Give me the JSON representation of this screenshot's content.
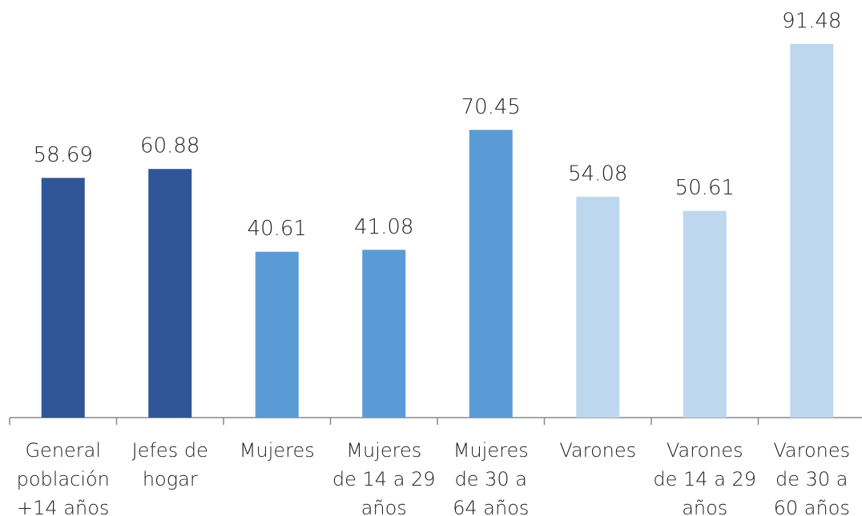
{
  "chart_data": {
    "type": "bar",
    "categories": [
      [
        "General",
        "población",
        "+14 años"
      ],
      [
        "Jefes de",
        "hogar"
      ],
      [
        "Mujeres"
      ],
      [
        "Mujeres",
        "de 14 a 29",
        "años"
      ],
      [
        "Mujeres",
        "de 30 a",
        "64 años"
      ],
      [
        "Varones"
      ],
      [
        "Varones",
        "de 14 a 29",
        "años"
      ],
      [
        "Varones",
        "de 30 a",
        "60 años"
      ]
    ],
    "values": [
      58.69,
      60.88,
      40.61,
      41.08,
      70.45,
      54.08,
      50.61,
      91.48
    ],
    "colors": [
      "#2f5597",
      "#2f5597",
      "#5b9bd5",
      "#5b9bd5",
      "#5b9bd5",
      "#bdd7ee",
      "#bdd7ee",
      "#bdd7ee"
    ]
  }
}
